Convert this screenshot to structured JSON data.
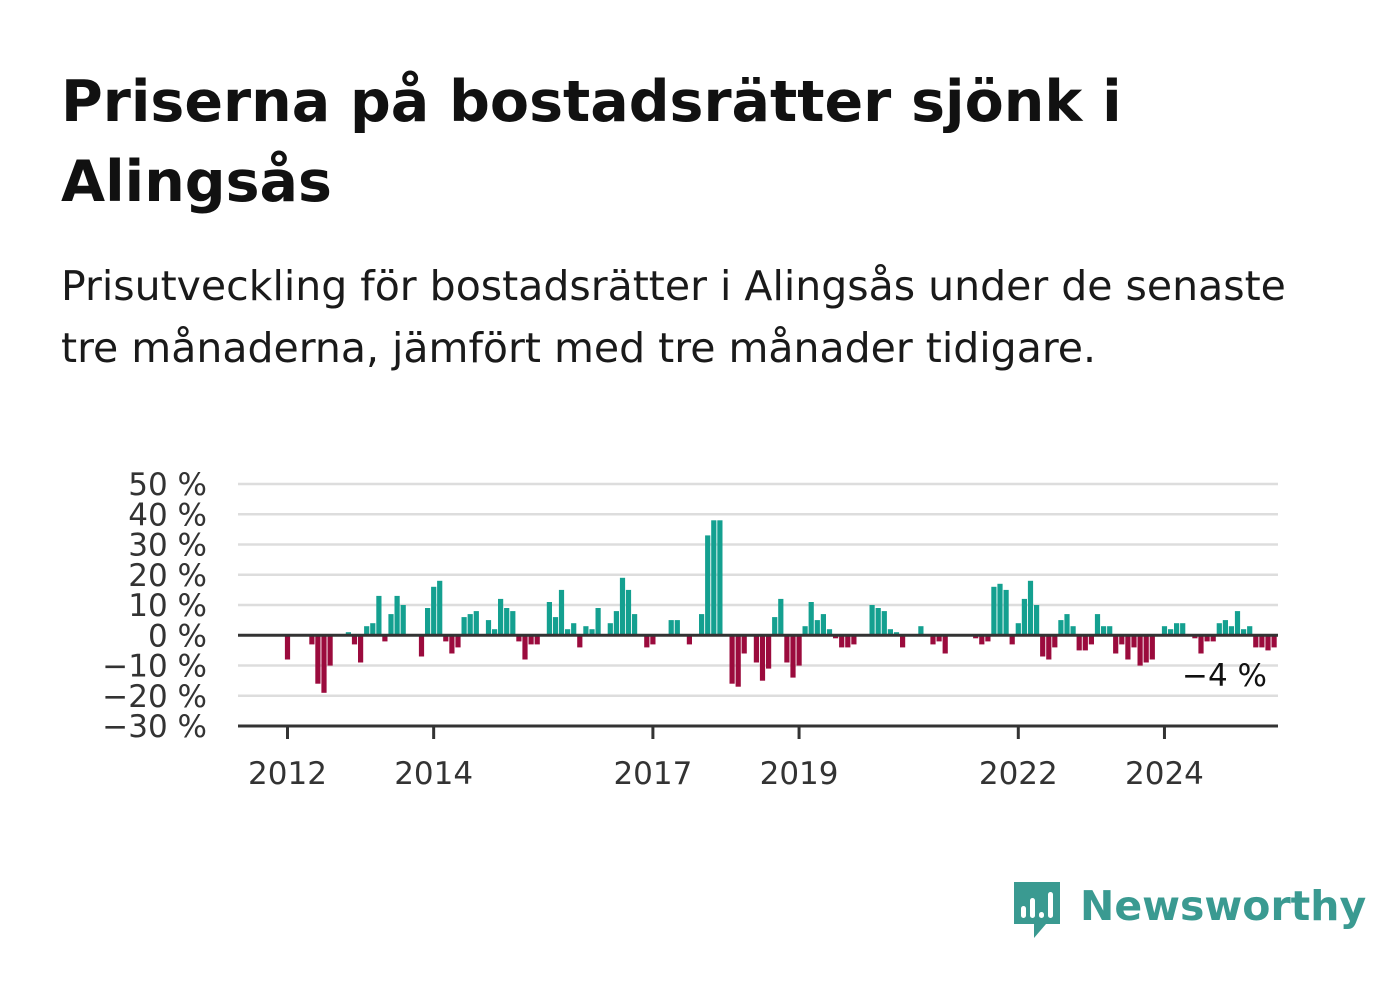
{
  "title": "Priserna på bostadsrätter sjönk i Alingsås",
  "subtitle": "Prisutveckling för bostadsrätter i Alingsås under de senaste tre månaderna, jämfört med tre månader tidigare.",
  "brand": {
    "name": "Newsworthy",
    "icon": "newsworthy-logo-icon"
  },
  "colors": {
    "positive": "#14a090",
    "negative": "#9b0b3d",
    "grid": "#dddddd",
    "axis": "#333333"
  },
  "chart_data": {
    "type": "bar",
    "x_start": "2012-01",
    "x_unit": "month",
    "ylim": [
      -30,
      50
    ],
    "yticks": [
      50,
      40,
      30,
      20,
      10,
      0,
      -10,
      -20,
      -30
    ],
    "ytick_labels": [
      "50 %",
      "40 %",
      "30 %",
      "20 %",
      "10 %",
      "0 %",
      "−10 %",
      "−20 %",
      "−30 %"
    ],
    "xticks": [
      {
        "label": "2012",
        "year": 2012
      },
      {
        "label": "2014",
        "year": 2014
      },
      {
        "label": "2017",
        "year": 2017
      },
      {
        "label": "2019",
        "year": 2019
      },
      {
        "label": "2022",
        "year": 2022
      },
      {
        "label": "2024",
        "year": 2024
      }
    ],
    "last_value_label": "−4 %",
    "grid": true,
    "values": [
      -8,
      0,
      0,
      0,
      -3,
      -16,
      -19,
      -10,
      0,
      0,
      1,
      -3,
      -9,
      3,
      4,
      13,
      -2,
      7,
      13,
      10,
      0,
      0,
      -7,
      9,
      16,
      18,
      -2,
      -6,
      -4,
      6,
      7,
      8,
      0,
      5,
      2,
      12,
      9,
      8,
      -2,
      -8,
      -3,
      -3,
      0,
      11,
      6,
      15,
      2,
      4,
      -4,
      3,
      2,
      9,
      0,
      4,
      8,
      19,
      15,
      7,
      0,
      -4,
      -3,
      0,
      0,
      5,
      5,
      0,
      -3,
      0,
      7,
      33,
      38,
      38,
      0,
      -16,
      -17,
      -6,
      0,
      -9,
      -15,
      -11,
      6,
      12,
      -9,
      -14,
      -10,
      3,
      11,
      5,
      7,
      2,
      -1,
      -4,
      -4,
      -3,
      0,
      0,
      10,
      9,
      8,
      2,
      1,
      -4,
      0,
      0,
      3,
      0,
      -3,
      -2,
      -6,
      0,
      0,
      0,
      0,
      -1,
      -3,
      -2,
      16,
      17,
      15,
      -3,
      4,
      12,
      18,
      10,
      -7,
      -8,
      -4,
      5,
      7,
      3,
      -5,
      -5,
      -3,
      7,
      3,
      3,
      -6,
      -3,
      -8,
      -4,
      -10,
      -9,
      -8,
      0,
      3,
      2,
      4,
      4,
      0,
      -1,
      -6,
      -2,
      -2,
      4,
      5,
      3,
      8,
      2,
      3,
      -4,
      -4,
      -5,
      -4
    ]
  }
}
